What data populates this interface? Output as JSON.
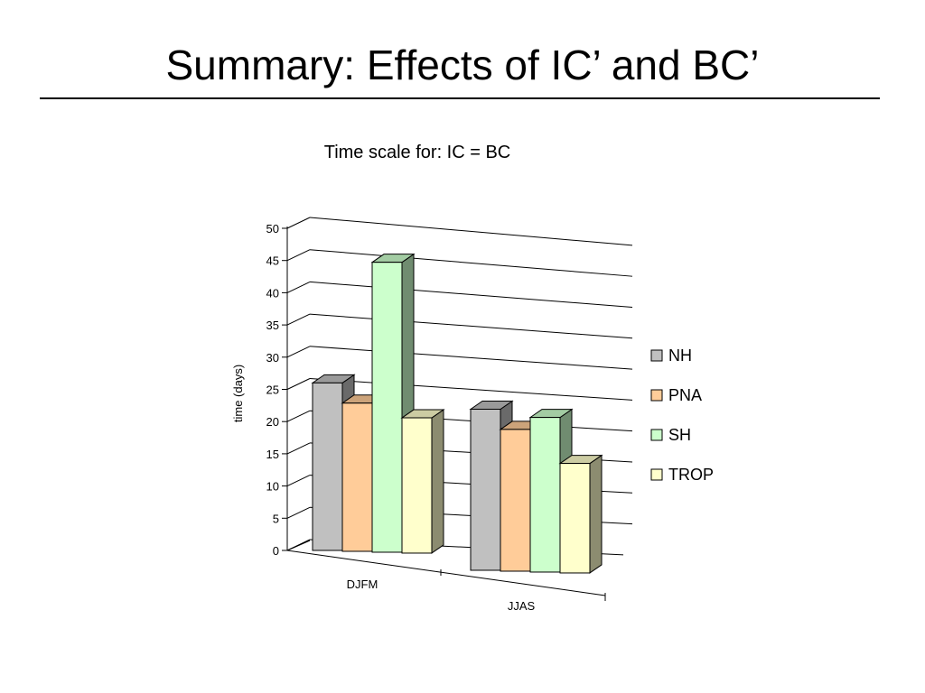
{
  "slide": {
    "title": "Summary: Effects of IC’ and BC’"
  },
  "chart_data": {
    "type": "bar",
    "title": "Time scale for: IC = BC",
    "xlabel": "",
    "ylabel": "time (days)",
    "ylim": [
      0,
      50
    ],
    "yticks": [
      0,
      5,
      10,
      15,
      20,
      25,
      30,
      35,
      40,
      45,
      50
    ],
    "categories": [
      "DJFM",
      "JJAS"
    ],
    "grid": true,
    "legend_position": "right",
    "series": [
      {
        "name": "NH",
        "values": [
          26,
          25
        ],
        "color": "#c0c0c0"
      },
      {
        "name": "PNA",
        "values": [
          23,
          22
        ],
        "color": "#ffcc99"
      },
      {
        "name": "SH",
        "values": [
          45,
          24
        ],
        "color": "#ccffcc"
      },
      {
        "name": "TROP",
        "values": [
          21,
          17
        ],
        "color": "#ffffcc"
      }
    ]
  }
}
